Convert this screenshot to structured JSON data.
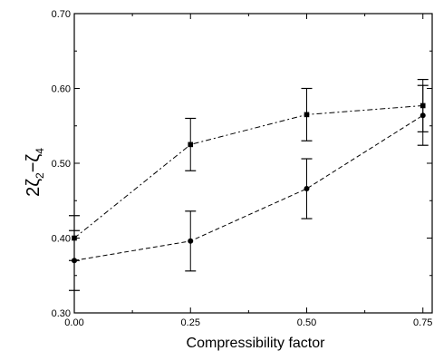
{
  "chart_data": {
    "type": "line",
    "title": "",
    "xlabel": "Compressibility factor",
    "ylabel": {
      "parts": [
        "2ζ",
        "2",
        "−ζ",
        "4"
      ]
    },
    "xlim": [
      0.0,
      0.77
    ],
    "ylim": [
      0.3,
      0.7
    ],
    "x_ticks": [
      0.0,
      0.25,
      0.5,
      0.75
    ],
    "x_tick_labels": [
      "0.00",
      "0.25",
      "0.50",
      "0.75"
    ],
    "y_ticks": [
      0.3,
      0.4,
      0.5,
      0.6,
      0.7
    ],
    "y_tick_labels": [
      "0.30",
      "0.40",
      "0.50",
      "0.60",
      "0.70"
    ],
    "grid": false,
    "series": [
      {
        "style": "dash-dot",
        "marker": "square",
        "x": [
          0.0,
          0.25,
          0.5,
          0.75
        ],
        "y": [
          0.4,
          0.525,
          0.565,
          0.577
        ],
        "err": [
          0.03,
          0.035,
          0.035,
          0.035
        ]
      },
      {
        "style": "dashed",
        "marker": "circle",
        "x": [
          0.0,
          0.25,
          0.5,
          0.75
        ],
        "y": [
          0.37,
          0.396,
          0.466,
          0.564
        ],
        "err": [
          0.04,
          0.04,
          0.04,
          0.04
        ]
      }
    ]
  }
}
